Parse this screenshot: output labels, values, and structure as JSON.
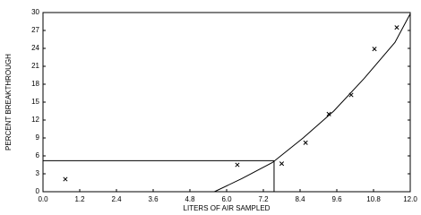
{
  "chart_data": {
    "type": "scatter",
    "x_label": "LITERS OF AIR SAMPLED",
    "y_label": "PERCENT BREAKTHROUGH",
    "xlim": [
      0,
      12
    ],
    "ylim": [
      0,
      30
    ],
    "xticks": [
      {
        "value": 0,
        "label": "0.0"
      },
      1.2,
      2.4,
      3.6,
      4.8,
      {
        "value": 6,
        "label": "6.0"
      },
      7.2,
      8.4,
      9.6,
      10.8,
      {
        "value": 12,
        "label": "12.0"
      }
    ],
    "yticks": [
      0,
      3,
      6,
      9,
      12,
      15,
      18,
      21,
      24,
      27,
      30
    ],
    "color": "#000000",
    "points": {
      "x": [
        0.73,
        6.35,
        7.8,
        8.58,
        9.34,
        10.07,
        10.83,
        11.56
      ],
      "y": [
        2.1,
        4.5,
        4.7,
        8.2,
        13.0,
        16.2,
        23.9,
        27.5
      ]
    },
    "curve": {
      "x": [
        5.6,
        6.5,
        7.5,
        8.5,
        9.5,
        10.5,
        11.5,
        12
      ],
      "y": [
        0,
        2.2,
        4.9,
        9,
        13.5,
        19,
        25,
        29.8
      ]
    },
    "reference": {
      "x": 7.55,
      "y": 5.2
    }
  }
}
